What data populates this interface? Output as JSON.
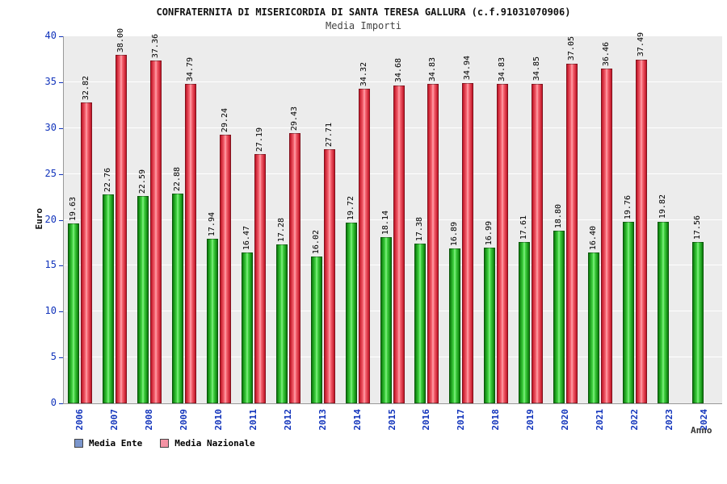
{
  "header": {
    "title": "CONFRATERNITA DI MISERICORDIA DI SANTA TERESA GALLURA (c.f.91031070906)",
    "subtitle": "Media Importi"
  },
  "axes": {
    "y_label": "Euro",
    "x_label": "Anno"
  },
  "legend": {
    "items": [
      {
        "label": "Media Ente",
        "swatch": "#7b96cc"
      },
      {
        "label": "Media Nazionale",
        "swatch": "#f493a4"
      }
    ]
  },
  "chart_data": {
    "type": "bar",
    "title": "Media Importi",
    "xlabel": "Anno",
    "ylabel": "Euro",
    "ylim": [
      0,
      40
    ],
    "y_ticks": [
      0,
      5,
      10,
      15,
      20,
      25,
      30,
      35,
      40
    ],
    "grid": true,
    "legend_position": "bottom-left",
    "categories": [
      "2006",
      "2007",
      "2008",
      "2009",
      "2010",
      "2011",
      "2012",
      "2013",
      "2014",
      "2015",
      "2016",
      "2017",
      "2018",
      "2019",
      "2020",
      "2021",
      "2022",
      "2023",
      "2024"
    ],
    "series": [
      {
        "name": "Media Ente",
        "color": "green",
        "values": [
          19.63,
          22.76,
          22.59,
          22.88,
          17.94,
          16.47,
          17.28,
          16.02,
          19.72,
          18.14,
          17.38,
          16.89,
          16.99,
          17.61,
          18.8,
          16.4,
          19.76,
          19.82,
          17.56
        ]
      },
      {
        "name": "Media Nazionale",
        "color": "red",
        "values": [
          32.82,
          38.0,
          37.36,
          34.79,
          29.24,
          27.19,
          29.43,
          27.71,
          34.32,
          34.68,
          34.83,
          34.94,
          34.83,
          34.85,
          37.05,
          36.46,
          37.49,
          null,
          null
        ]
      }
    ]
  }
}
